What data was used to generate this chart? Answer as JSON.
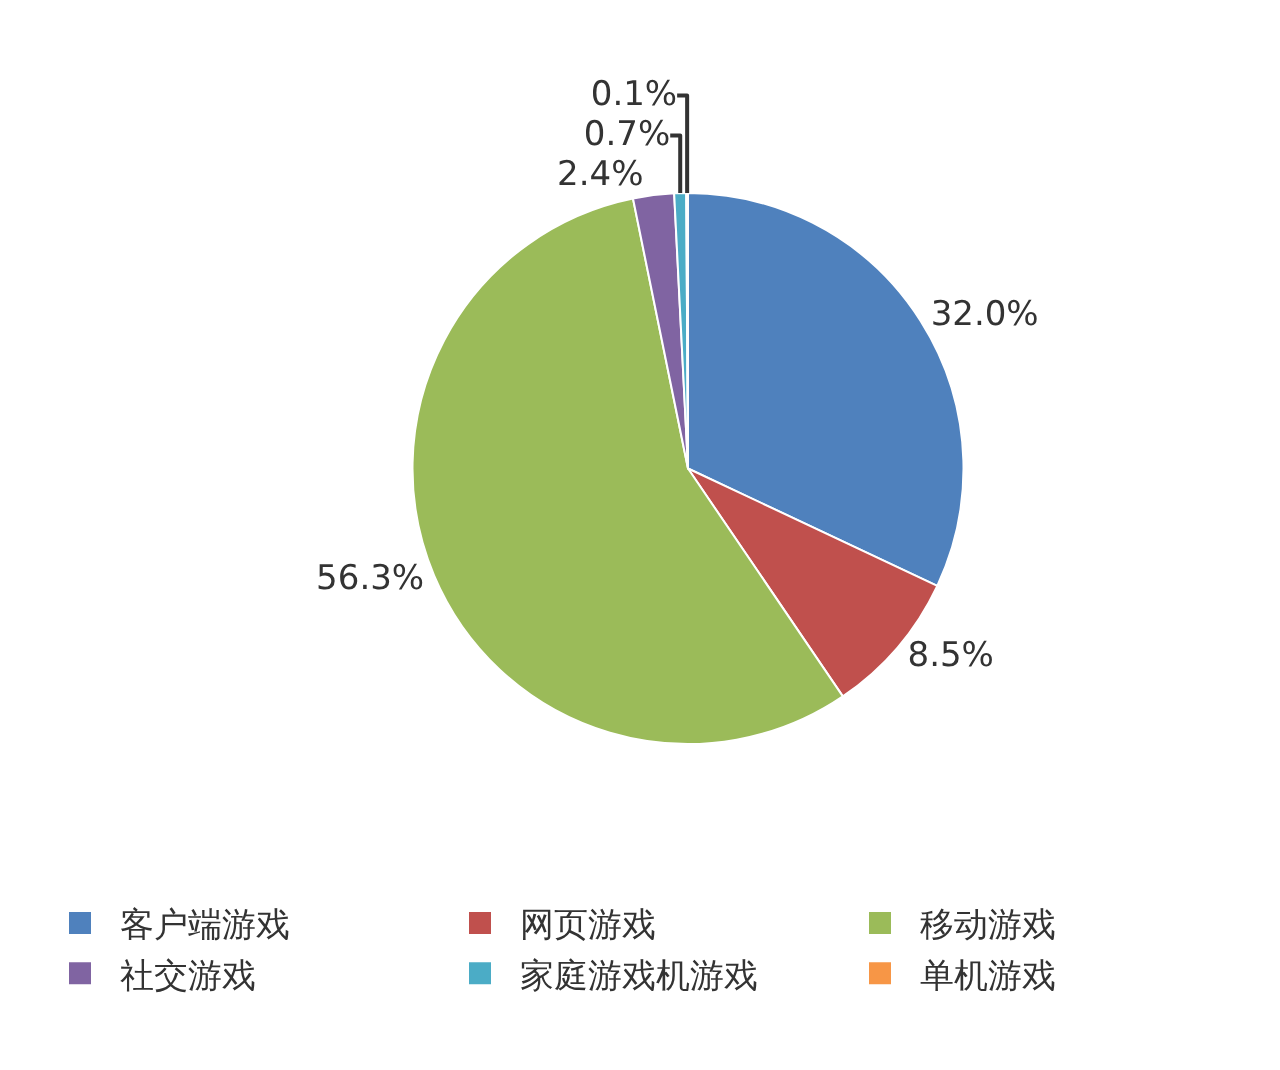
{
  "chart_data": {
    "type": "pie",
    "categories": [
      "客户端游戏",
      "网页游戏",
      "移动游戏",
      "社交游戏",
      "家庭游戏机游戏",
      "单机游戏"
    ],
    "values": [
      32.0,
      8.5,
      56.3,
      2.4,
      0.7,
      0.1
    ],
    "value_labels": [
      "32.0%",
      "8.5%",
      "56.3%",
      "2.4%",
      "0.7%",
      "0.1%"
    ],
    "colors": [
      "#4f81bd",
      "#c0504d",
      "#9bbb59",
      "#8064a2",
      "#4bacc6",
      "#f79646"
    ],
    "legend": "bottom"
  }
}
